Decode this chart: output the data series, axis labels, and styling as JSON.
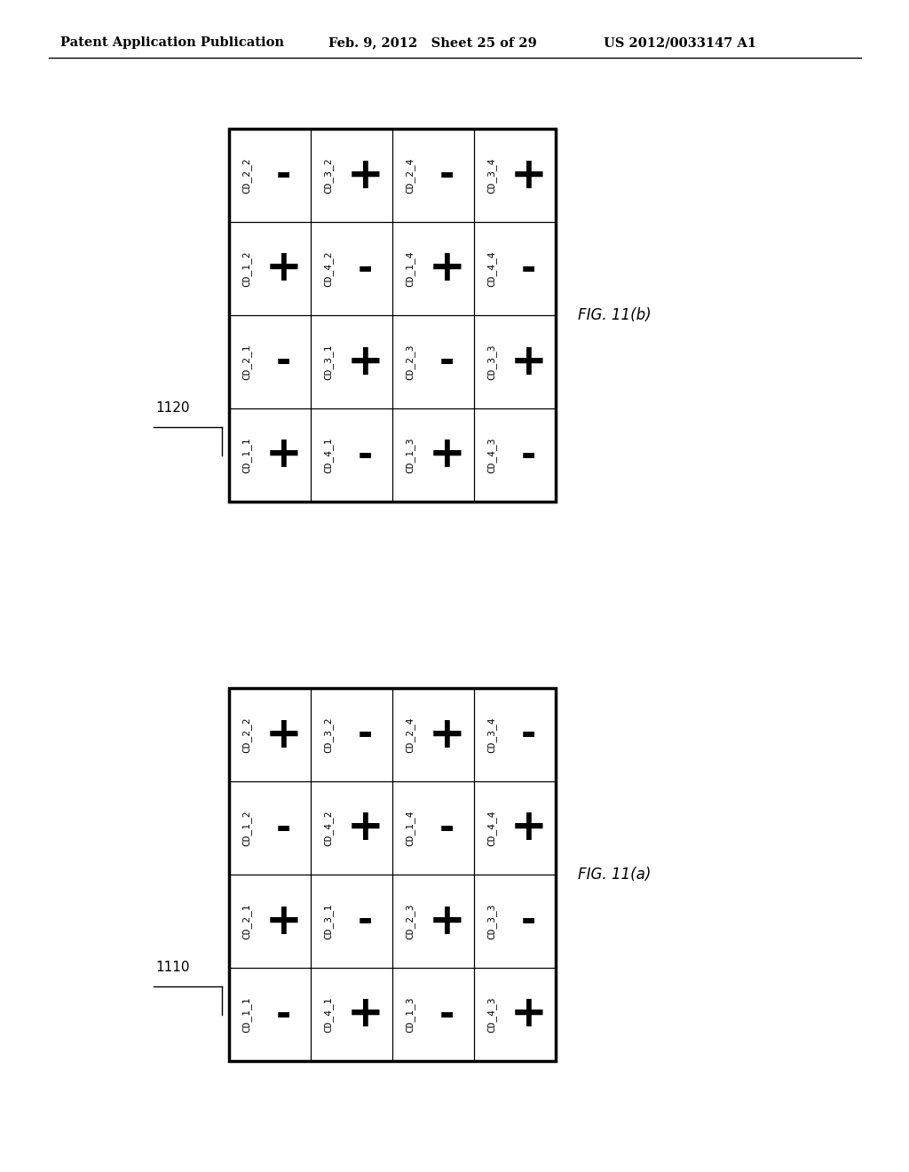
{
  "background_color": "#ffffff",
  "header_left": "Patent Application Publication",
  "header_mid": "Feb. 9, 2012   Sheet 25 of 29",
  "header_right": "US 2012/0033147 A1",
  "fig_b_label": "FIG. 11(b)",
  "fig_a_label": "FIG. 11(a)",
  "fig_b_ref": "1120",
  "fig_a_ref": "1110",
  "grid_b_cells": [
    [
      {
        "label": "CD_2_2",
        "sign": "-"
      },
      {
        "label": "CD_3_2",
        "sign": "+"
      },
      {
        "label": "CD_2_4",
        "sign": "-"
      },
      {
        "label": "CD_3_4",
        "sign": "+"
      }
    ],
    [
      {
        "label": "CD_1_2",
        "sign": "+"
      },
      {
        "label": "CD_4_2",
        "sign": "-"
      },
      {
        "label": "CD_1_4",
        "sign": "+"
      },
      {
        "label": "CD_4_4",
        "sign": "-"
      }
    ],
    [
      {
        "label": "CD_2_1",
        "sign": "-"
      },
      {
        "label": "CD_3_1",
        "sign": "+"
      },
      {
        "label": "CD_2_3",
        "sign": "-"
      },
      {
        "label": "CD_3_3",
        "sign": "+"
      }
    ],
    [
      {
        "label": "CD_1_1",
        "sign": "+"
      },
      {
        "label": "CD_4_1",
        "sign": "-"
      },
      {
        "label": "CD_1_3",
        "sign": "+"
      },
      {
        "label": "CD_4_3",
        "sign": "-"
      }
    ]
  ],
  "grid_a_cells": [
    [
      {
        "label": "CD_2_2",
        "sign": "+"
      },
      {
        "label": "CD_3_2",
        "sign": "-"
      },
      {
        "label": "CD_2_4",
        "sign": "+"
      },
      {
        "label": "CD_3_4",
        "sign": "-"
      }
    ],
    [
      {
        "label": "CD_1_2",
        "sign": "-"
      },
      {
        "label": "CD_4_2",
        "sign": "+"
      },
      {
        "label": "CD_1_4",
        "sign": "-"
      },
      {
        "label": "CD_4_4",
        "sign": "+"
      }
    ],
    [
      {
        "label": "CD_2_1",
        "sign": "+"
      },
      {
        "label": "CD_3_1",
        "sign": "-"
      },
      {
        "label": "CD_2_3",
        "sign": "+"
      },
      {
        "label": "CD_3_3",
        "sign": "-"
      }
    ],
    [
      {
        "label": "CD_1_1",
        "sign": "-"
      },
      {
        "label": "CD_4_1",
        "sign": "+"
      },
      {
        "label": "CD_1_3",
        "sign": "-"
      },
      {
        "label": "CD_4_3",
        "sign": "+"
      }
    ]
  ]
}
